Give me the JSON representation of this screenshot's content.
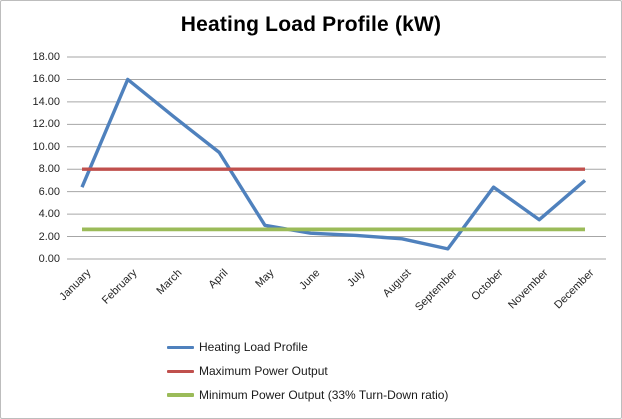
{
  "title": "Heating Load Profile (kW)",
  "chart_data": {
    "type": "line",
    "title": "Heating Load Profile (kW)",
    "categories": [
      "January",
      "February",
      "March",
      "April",
      "May",
      "June",
      "July",
      "August",
      "September",
      "October",
      "November",
      "December"
    ],
    "series": [
      {
        "name": "Heating Load Profile",
        "color": "#4F81BD",
        "width": 3.4,
        "values": [
          6.4,
          16.0,
          12.7,
          9.5,
          3.0,
          2.3,
          2.1,
          1.8,
          0.9,
          6.4,
          3.5,
          7.0
        ]
      },
      {
        "name": "Maximum Power Output",
        "color": "#C0504D",
        "width": 3.4,
        "values": [
          8,
          8,
          8,
          8,
          8,
          8,
          8,
          8,
          8,
          8,
          8,
          8
        ]
      },
      {
        "name": "Minimum Power Output (33% Turn-Down ratio)",
        "color": "#9BBB59",
        "width": 3.8,
        "values": [
          2.64,
          2.64,
          2.64,
          2.64,
          2.64,
          2.64,
          2.64,
          2.64,
          2.64,
          2.64,
          2.64,
          2.64
        ]
      }
    ],
    "ylim": [
      0,
      18
    ],
    "ytick_step": 2,
    "ytick_labels": [
      "0.00",
      "2.00",
      "4.00",
      "6.00",
      "8.00",
      "10.00",
      "12.00",
      "14.00",
      "16.00",
      "18.00"
    ],
    "xlabel": "",
    "ylabel": "",
    "grid": true,
    "legend_position": "bottom-left",
    "styles": {
      "grid_color": "#A6A6A6",
      "axis_text_color": "#262626",
      "background": "#FFFFFF",
      "border_color": "#BDBDBD"
    }
  }
}
